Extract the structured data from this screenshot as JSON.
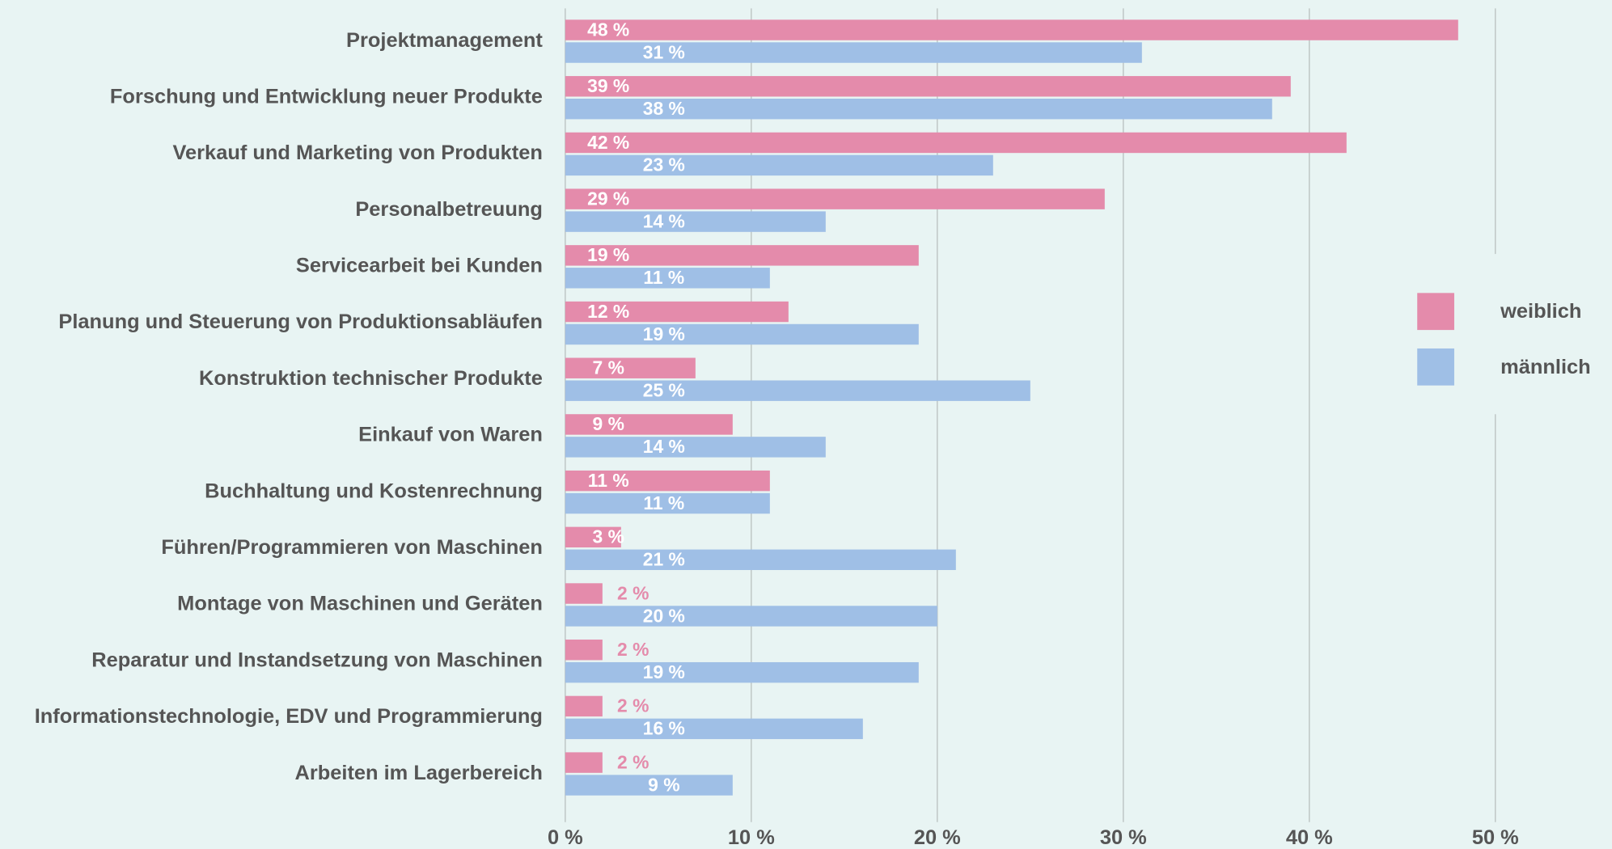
{
  "chart_data": {
    "type": "bar",
    "orientation": "horizontal",
    "categories": [
      "Projektmanagement",
      "Forschung und Entwicklung neuer Produkte",
      "Verkauf und Marketing von Produkten",
      "Personalbetreuung",
      "Servicearbeit bei Kunden",
      "Planung und Steuerung von Produktionsabläufen",
      "Konstruktion technischer Produkte",
      "Einkauf von Waren",
      "Buchhaltung und Kostenrechnung",
      "Führen/Programmieren von Maschinen",
      "Montage von Maschinen und Geräten",
      "Reparatur und Instandsetzung von Maschinen",
      "Informationstechnologie, EDV und Programmierung",
      "Arbeiten im Lagerbereich"
    ],
    "series": [
      {
        "name": "weiblich",
        "color": "#e48bab",
        "values": [
          48,
          39,
          42,
          29,
          19,
          12,
          7,
          9,
          11,
          3,
          2,
          2,
          2,
          2
        ],
        "value_labels": [
          "48 %",
          "39 %",
          "42 %",
          "29 %",
          "19 %",
          "12 %",
          "7 %",
          "9 %",
          "11 %",
          "3 %",
          "2 %",
          "2 %",
          "2 %",
          "2 %"
        ]
      },
      {
        "name": "männlich",
        "color": "#9fbfe6",
        "values": [
          31,
          38,
          23,
          14,
          11,
          19,
          25,
          14,
          11,
          21,
          20,
          19,
          16,
          9
        ],
        "value_labels": [
          "31 %",
          "38 %",
          "23 %",
          "14 %",
          "11 %",
          "19 %",
          "25 %",
          "14 %",
          "11 %",
          "21 %",
          "20 %",
          "19 %",
          "16 %",
          "9 %"
        ]
      }
    ],
    "xlim": [
      0,
      50
    ],
    "xticks": [
      {
        "value": 0,
        "label": "0 %"
      },
      {
        "value": 10,
        "label": "10 %"
      },
      {
        "value": 20,
        "label": "20 %"
      },
      {
        "value": 30,
        "label": "30 %"
      },
      {
        "value": 40,
        "label": "40 %"
      },
      {
        "value": 50,
        "label": "50 %"
      }
    ],
    "grid": true,
    "legend": "right"
  }
}
